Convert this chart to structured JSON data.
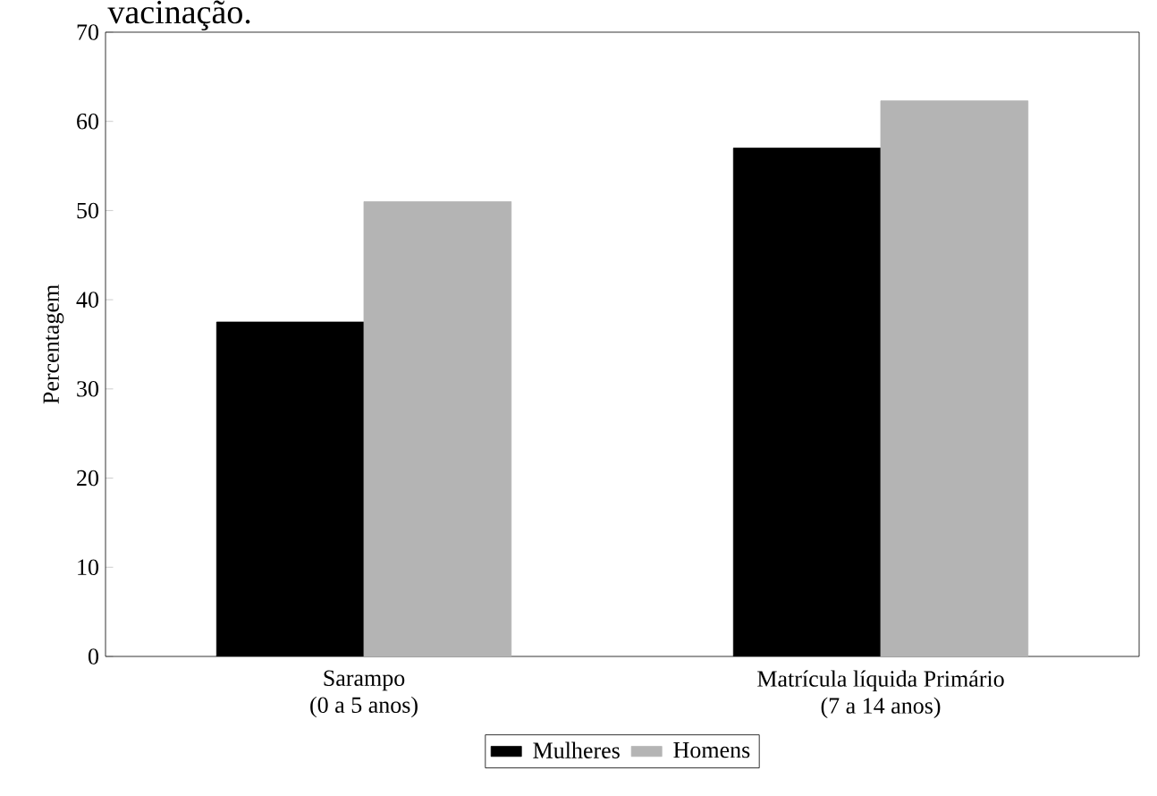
{
  "chart_data": {
    "type": "bar",
    "title": "vacinação.",
    "ylabel": "Percentagem",
    "categories": [
      "Sarampo\n(0 a 5 anos)",
      "Matrícula líquida Primário\n(7 a 14 anos)"
    ],
    "series": [
      {
        "name": "Mulheres",
        "color": "#000000",
        "values": [
          37.5,
          57
        ]
      },
      {
        "name": "Homens",
        "color": "#b4b4b4",
        "values": [
          51,
          62.3
        ]
      }
    ],
    "ylim": [
      0,
      70
    ],
    "yticks": [
      0,
      10,
      20,
      30,
      40,
      50,
      60,
      70
    ],
    "grid": false,
    "legend": "bottom"
  }
}
